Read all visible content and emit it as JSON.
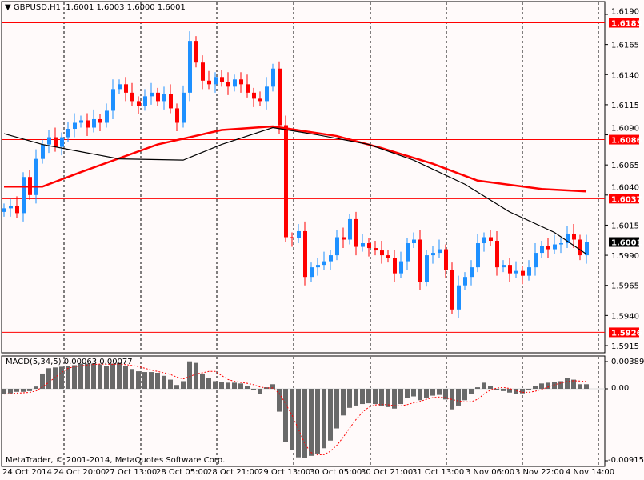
{
  "header": {
    "symbol": "GBPUSD,H1",
    "ohlc": "1.6001 1.6003 1.6000 1.6001"
  },
  "macd": {
    "title": "MACD(5,34,5) 0.00063 0.00077",
    "ticks": [
      "0.00389",
      "0.00",
      "-0.00915"
    ]
  },
  "copyright": "MetaTrader, © 2001-2014, MetaQuotes Software Corp.",
  "chart_data": {
    "type": "candlestick",
    "symbol": "GBPUSD",
    "timeframe": "H1",
    "ylim": [
      1.591,
      1.6195
    ],
    "price_ticks": [
      "1.6190",
      "1.6165",
      "1.6140",
      "1.6115",
      "1.6090",
      "1.6065",
      "1.6040",
      "1.6015",
      "1.5990",
      "1.5965",
      "1.5940",
      "1.5915"
    ],
    "time_ticks": [
      "24 Oct 2014",
      "24 Oct 20:00",
      "27 Oct 13:00",
      "28 Oct 05:00",
      "28 Oct 21:00",
      "29 Oct 13:00",
      "30 Oct 05:00",
      "30 Oct 21:00",
      "31 Oct 13:00",
      "3 Nov 06:00",
      "3 Nov 22:00",
      "4 Nov 14:00"
    ],
    "grid": true,
    "closes": [
      1.6029,
      1.6031,
      1.6025,
      1.6055,
      1.604,
      1.607,
      1.6082,
      1.6088,
      1.608,
      1.6088,
      1.6095,
      1.61,
      1.6102,
      1.6096,
      1.6103,
      1.61,
      1.611,
      1.6128,
      1.6132,
      1.6125,
      1.6118,
      1.6114,
      1.6122,
      1.6125,
      1.6118,
      1.6124,
      1.6112,
      1.61,
      1.6125,
      1.6168,
      1.615,
      1.6135,
      1.6132,
      1.6138,
      1.6134,
      1.613,
      1.6136,
      1.6132,
      1.6125,
      1.612,
      1.6118,
      1.613,
      1.6145,
      1.6098,
      1.6005,
      1.6004,
      1.601,
      1.5972,
      1.598,
      1.5982,
      1.5985,
      1.599,
      1.6005,
      1.6003,
      1.602,
      1.5997,
      1.6,
      1.5996,
      1.5994,
      1.599,
      1.5988,
      1.5975,
      1.5985,
      1.6,
      1.6003,
      1.5968,
      1.599,
      1.5992,
      1.5995,
      1.5978,
      1.5945,
      1.5965,
      1.5972,
      1.598,
      1.6,
      1.6005,
      1.6002,
      1.598,
      1.5982,
      1.5975,
      1.5977,
      1.5973,
      1.598,
      1.5992,
      1.5998,
      1.5995,
      1.5999,
      1.6,
      1.6008,
      1.6003,
      1.599,
      1.6001
    ],
    "ma_black": [
      [
        0,
        1.6091
      ],
      [
        6,
        1.6082
      ],
      [
        12,
        1.6076
      ],
      [
        18,
        1.607
      ],
      [
        28,
        1.6069
      ],
      [
        34,
        1.6082
      ],
      [
        42,
        1.6096
      ],
      [
        49,
        1.609
      ],
      [
        57,
        1.6082
      ],
      [
        64,
        1.6069
      ],
      [
        72,
        1.6049
      ],
      [
        79,
        1.6026
      ],
      [
        86,
        1.6009
      ],
      [
        91,
        1.5991
      ]
    ],
    "ma_red": [
      [
        0,
        1.6047
      ],
      [
        6,
        1.6047
      ],
      [
        12,
        1.6059
      ],
      [
        24,
        1.6082
      ],
      [
        34,
        1.6094
      ],
      [
        42,
        1.6097
      ],
      [
        52,
        1.6089
      ],
      [
        59,
        1.6079
      ],
      [
        67,
        1.6066
      ],
      [
        74,
        1.6052
      ],
      [
        84,
        1.6045
      ],
      [
        91,
        1.6043
      ]
    ],
    "levels": [
      {
        "price": "1.6183",
        "color": "#ff0000"
      },
      {
        "price": "1.6086",
        "color": "#ff0000"
      },
      {
        "price": "1.6037",
        "color": "#ff0000"
      },
      {
        "price": "1.5926",
        "color": "#ff0000"
      },
      {
        "price": "1.6001",
        "color": "#000000",
        "current": true
      }
    ],
    "macd_hist": [
      -0.0007,
      -0.0006,
      -0.0004,
      -0.0004,
      -0.0003,
      0.0003,
      0.002,
      0.0027,
      0.0028,
      0.0029,
      0.003,
      0.0031,
      0.0033,
      0.0033,
      0.0033,
      0.0032,
      0.003,
      0.0033,
      0.0034,
      0.003,
      0.0026,
      0.0023,
      0.0022,
      0.0022,
      0.0021,
      0.0017,
      0.0012,
      0.0005,
      0.001,
      0.0036,
      0.0034,
      0.002,
      0.0014,
      0.001,
      0.0009,
      0.0008,
      0.0008,
      0.0007,
      0.0004,
      0.0,
      -0.0007,
      0.0002,
      0.0006,
      -0.003,
      -0.007,
      -0.008,
      -0.009,
      -0.0091,
      -0.0088,
      -0.0085,
      -0.0078,
      -0.0068,
      -0.0052,
      -0.0035,
      -0.0025,
      -0.0022,
      -0.002,
      -0.0019,
      -0.002,
      -0.0022,
      -0.0024,
      -0.0026,
      -0.002,
      -0.0012,
      -0.001,
      -0.0015,
      -0.0012,
      -0.0009,
      -0.0008,
      -0.0014,
      -0.0027,
      -0.0022,
      -0.0015,
      -0.0007,
      0.0002,
      0.0008,
      0.0004,
      -0.0002,
      -0.0003,
      -0.0005,
      -0.0007,
      -0.0006,
      -0.0002,
      0.0004,
      0.0007,
      0.0008,
      0.0009,
      0.001,
      0.0014,
      0.0012,
      0.0006,
      0.0006
    ],
    "colors": {
      "bull": "#1e90ff",
      "bear": "#ff0000",
      "macd_bar": "#696969",
      "signal": "#ff0000",
      "grid": "#000000"
    }
  }
}
